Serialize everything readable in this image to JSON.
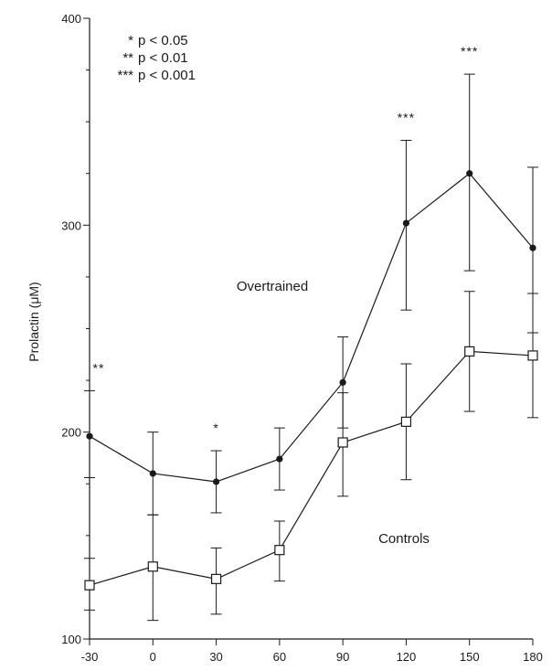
{
  "chart_data": {
    "type": "line",
    "title": "",
    "xlabel": "",
    "ylabel": "Prolactin (μM)",
    "x": [
      -30,
      0,
      30,
      60,
      90,
      120,
      150,
      180
    ],
    "xticks": [
      "-30",
      "0",
      "30",
      "60",
      "90",
      "120",
      "150",
      "180"
    ],
    "yticks": [
      "100",
      "200",
      "300",
      "400"
    ],
    "xlim": [
      -30,
      180
    ],
    "ylim": [
      100,
      400
    ],
    "grid": false,
    "series": [
      {
        "name": "Overtrained",
        "marker": "filled-circle",
        "color": "#1a1a1a",
        "values": [
          198,
          180,
          176,
          187,
          224,
          301,
          325,
          289
        ],
        "error_lower": [
          178,
          160,
          161,
          172,
          202,
          259,
          278,
          248
        ],
        "error_upper": [
          220,
          200,
          191,
          202,
          246,
          341,
          373,
          328
        ]
      },
      {
        "name": "Controls",
        "marker": "open-square",
        "color": "#1a1a1a",
        "values": [
          126,
          135,
          129,
          143,
          195,
          205,
          239,
          237
        ],
        "error_lower": [
          114,
          109,
          112,
          128,
          169,
          177,
          210,
          207
        ],
        "error_upper": [
          139,
          160,
          144,
          157,
          219,
          233,
          268,
          267
        ]
      }
    ],
    "significance": [
      {
        "x": -30,
        "label": "**"
      },
      {
        "x": 30,
        "label": "*"
      },
      {
        "x": 120,
        "label": "***"
      },
      {
        "x": 150,
        "label": "***"
      }
    ],
    "legend": [
      {
        "marks": "*",
        "text": "p < 0.05"
      },
      {
        "marks": "**",
        "text": "p < 0.01"
      },
      {
        "marks": "***",
        "text": "p < 0.001"
      }
    ],
    "legend_position": "top-left"
  }
}
